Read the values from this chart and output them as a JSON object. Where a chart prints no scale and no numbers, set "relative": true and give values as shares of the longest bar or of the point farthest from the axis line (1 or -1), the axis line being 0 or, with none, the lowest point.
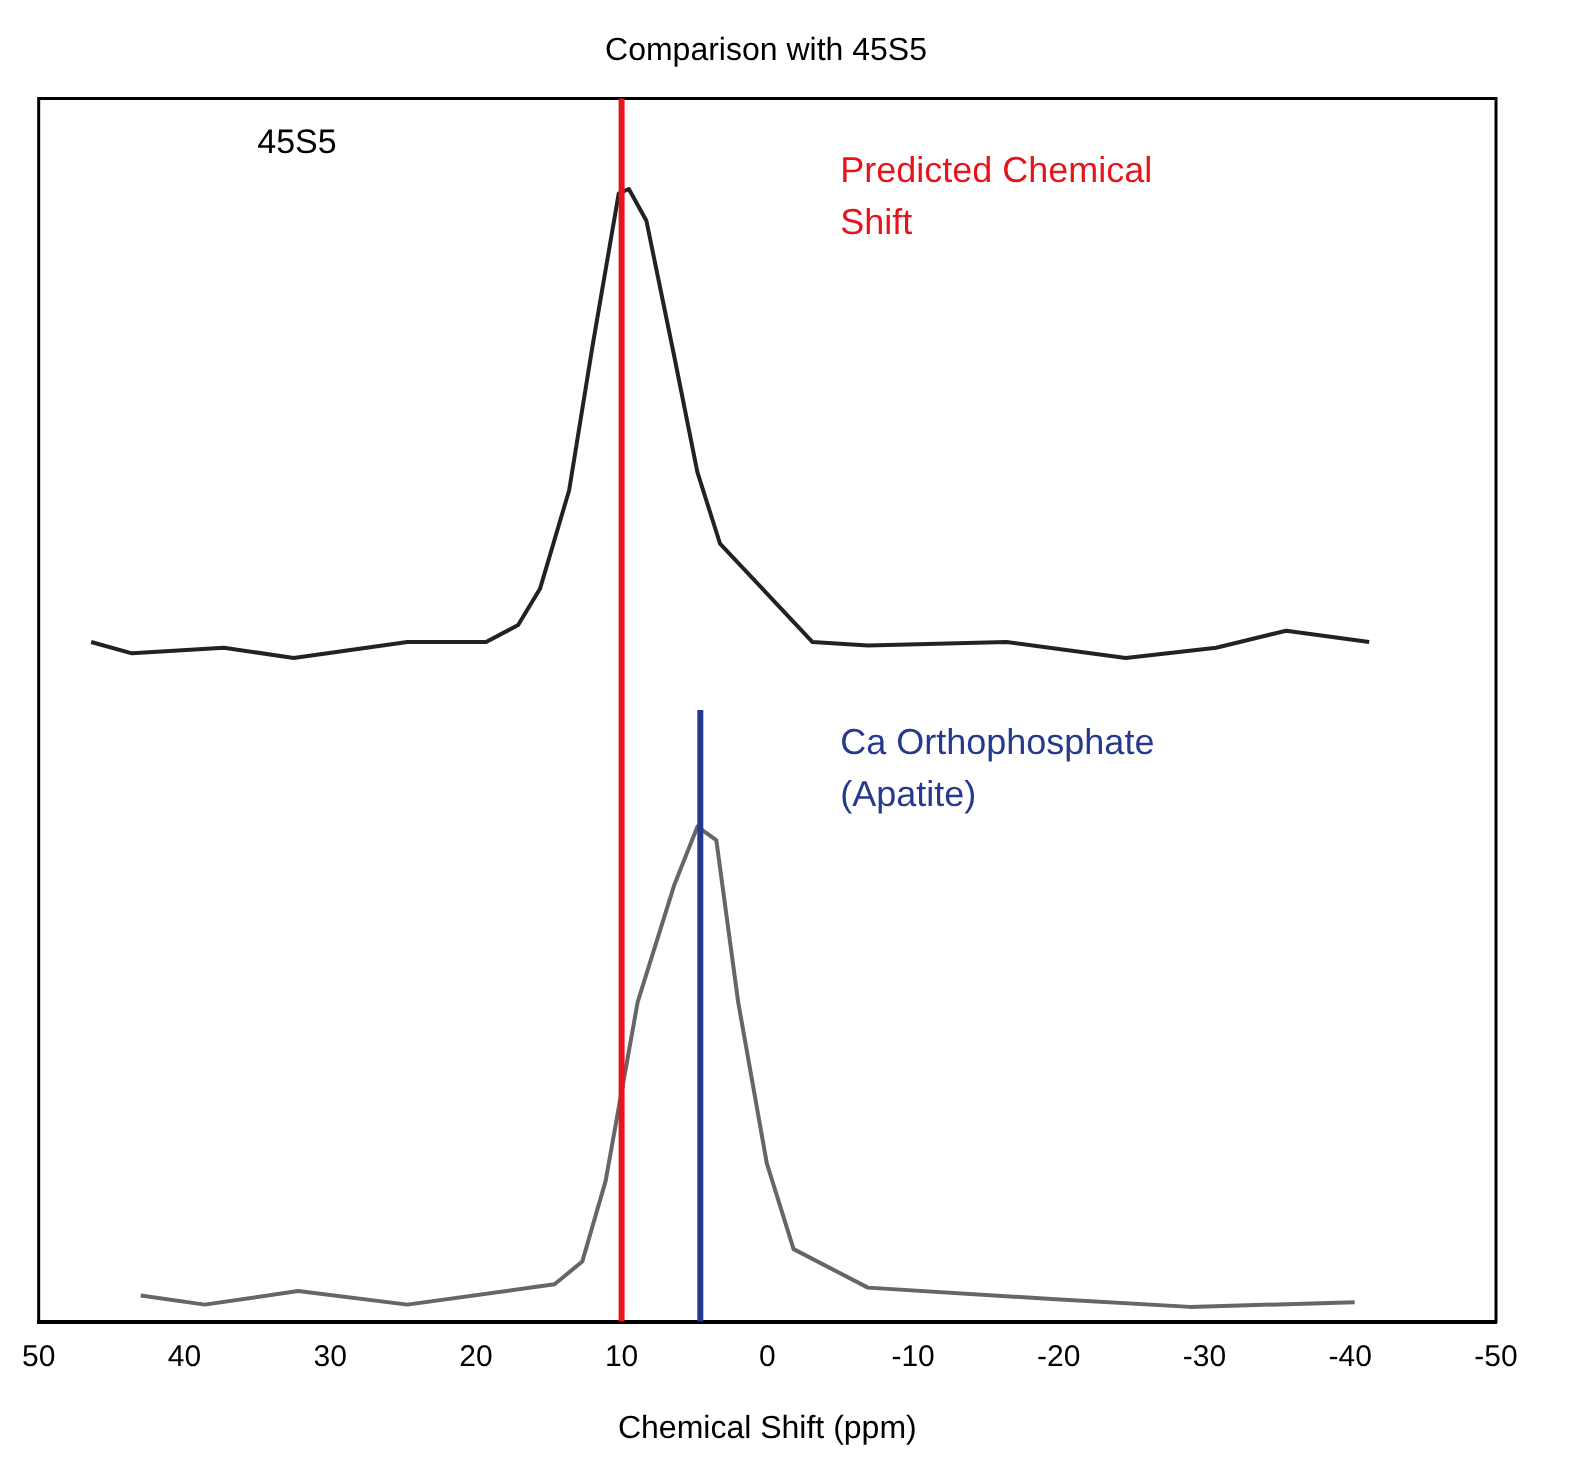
{
  "chart_data": {
    "type": "line",
    "title": "Comparison with 45S5",
    "xlabel": "Chemical Shift (ppm)",
    "relative": true,
    "xlim": [
      50,
      -50
    ],
    "xticks": [
      50,
      40,
      30,
      20,
      10,
      0,
      -10,
      -20,
      -30,
      -40,
      -50
    ],
    "grid": false,
    "legend": false,
    "marker": "none",
    "line_style": "solid",
    "series": [
      {
        "name": "45S5",
        "color": "#222222",
        "x": [
          46.4,
          43.6,
          37.3,
          32.5,
          24.7,
          19.3,
          17.1,
          15.6,
          13.6,
          12.0,
          10.2,
          9.5,
          8.3,
          6.4,
          4.8,
          3.25,
          0.04,
          -3.1,
          -6.9,
          -16.4,
          -24.6,
          -30.8,
          -35.6,
          -41.3
        ],
        "values": [
          0.6,
          0.59,
          0.595,
          0.586,
          0.6,
          0.6,
          0.615,
          0.647,
          0.734,
          0.861,
          0.996,
          1.0,
          0.972,
          0.853,
          0.75,
          0.687,
          0.643,
          0.6,
          0.597,
          0.6,
          0.586,
          0.595,
          0.61,
          0.6
        ]
      },
      {
        "color": "#666666",
        "x": [
          43,
          38.6,
          32.2,
          24.7,
          14.6,
          12.7,
          11.1,
          8.9,
          6.4,
          4.8,
          3.5,
          2.0,
          0.04,
          -1.8,
          -6.9,
          -19.5,
          -29,
          -40.3
        ],
        "values": [
          0.023,
          0.015,
          0.027,
          0.015,
          0.033,
          0.053,
          0.124,
          0.282,
          0.385,
          0.437,
          0.425,
          0.282,
          0.14,
          0.064,
          0.03,
          0.02,
          0.013,
          0.017
        ]
      }
    ],
    "ref_lines": [
      {
        "axis": "x",
        "value": 10,
        "label": "Predicted Chemical Shift",
        "color": "#e8141c",
        "line_style": "solid"
      },
      {
        "axis": "x",
        "value": 4.6,
        "label": "Ca Orthophosphate (Apatite)",
        "color": "#253a8e",
        "line_style": "solid"
      }
    ]
  }
}
